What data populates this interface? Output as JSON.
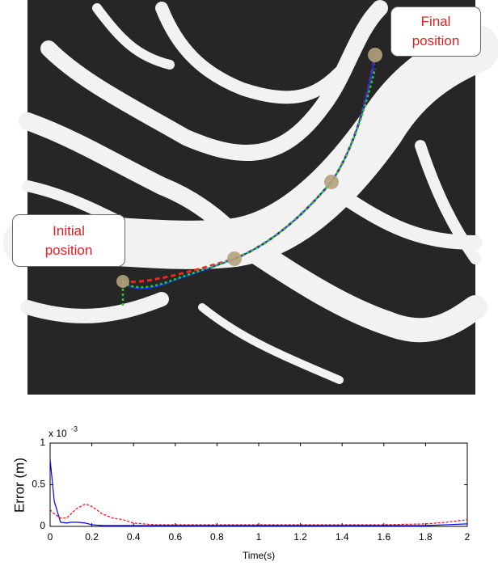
{
  "annotations": {
    "initial": "Initial position",
    "final": "Final position"
  },
  "chart_data": {
    "type": "line",
    "ylabel": "Error (m)",
    "xlabel": "Time(s)",
    "multiplier": "x 10",
    "multiplier_exponent": "-3",
    "x": [
      0,
      0.02,
      0.05,
      0.08,
      0.1,
      0.13,
      0.17,
      0.2,
      0.25,
      0.3,
      0.35,
      0.4,
      0.5,
      0.6,
      0.8,
      1,
      1.2,
      1.4,
      1.6,
      1.8,
      1.9,
      2
    ],
    "series": [
      {
        "color": "#0000ff",
        "dash": false,
        "values": [
          0.8,
          0.3,
          0.05,
          0.04,
          0.05,
          0.05,
          0.04,
          0.02,
          0.01,
          0.01,
          0.01,
          0.01,
          0.01,
          0.01,
          0.01,
          0.01,
          0.01,
          0.01,
          0.01,
          0.01,
          0.02,
          0.03
        ]
      },
      {
        "color": "#ff0000",
        "dash": true,
        "values": [
          0.2,
          0.15,
          0.1,
          0.1,
          0.15,
          0.22,
          0.27,
          0.24,
          0.15,
          0.1,
          0.08,
          0.04,
          0.02,
          0.02,
          0.02,
          0.02,
          0.02,
          0.02,
          0.02,
          0.03,
          0.05,
          0.08
        ]
      }
    ],
    "xlim": [
      0,
      2
    ],
    "xticks": [
      0,
      0.2,
      0.4,
      0.6,
      0.8,
      1,
      1.2,
      1.4,
      1.6,
      1.8,
      2
    ],
    "ylim": [
      0,
      1
    ],
    "yticks": [
      0,
      0.5,
      1
    ]
  }
}
